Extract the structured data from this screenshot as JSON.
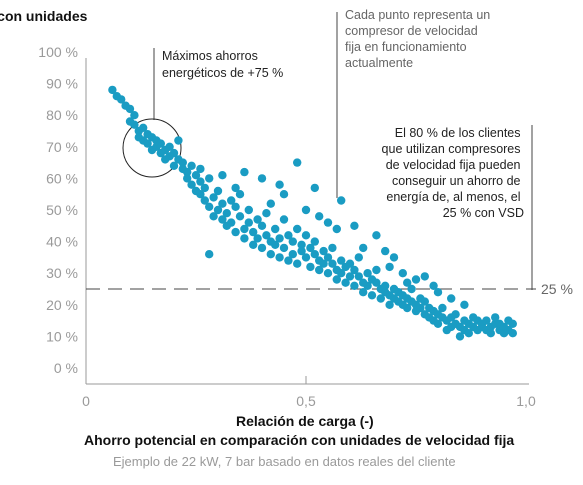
{
  "chart_data": {
    "type": "scatter",
    "xlabel": "Relación de carga (-)",
    "ylabel": "Ahorro potencial en comparación con unidades de velocidad fija",
    "title": "Ahorro potencial en comparación con unidades de velocidad fija",
    "subtitle": "Ejemplo de 22 kW, 7 bar basado en datos reales del cliente",
    "xlim": [
      0,
      1.0
    ],
    "ylim": [
      0,
      100
    ],
    "xticks": [
      "0",
      "0,5",
      "1,0"
    ],
    "yticks": [
      "0 %",
      "10 %",
      "20 %",
      "30 %",
      "40 %",
      "50 %",
      "60 %",
      "70 %",
      "80 %",
      "90 %",
      "100 %"
    ],
    "grid": false,
    "color": "#1a9cc3",
    "reference_line": {
      "y": 25,
      "label": "25 %"
    },
    "annotations": {
      "max_savings": [
        "Máximos ahorros",
        "energéticos de +75 %"
      ],
      "each_point": [
        "Cada punto representa un",
        "compresor de velocidad",
        "fija en funcionamiento",
        "actualmente"
      ],
      "clients": [
        "El 80 % de los clientes",
        "que utilizan compresores",
        "de velocidad fija pueden",
        "conseguir un ahorro de",
        "energía de, al menos, el",
        "25 % con VSD"
      ]
    },
    "points": [
      [
        0.06,
        88
      ],
      [
        0.07,
        86
      ],
      [
        0.08,
        85
      ],
      [
        0.09,
        83
      ],
      [
        0.1,
        82
      ],
      [
        0.1,
        78
      ],
      [
        0.11,
        80
      ],
      [
        0.11,
        77
      ],
      [
        0.12,
        75
      ],
      [
        0.12,
        73
      ],
      [
        0.13,
        76
      ],
      [
        0.13,
        72
      ],
      [
        0.14,
        74
      ],
      [
        0.14,
        71
      ],
      [
        0.15,
        73
      ],
      [
        0.15,
        69
      ],
      [
        0.16,
        72
      ],
      [
        0.16,
        70
      ],
      [
        0.17,
        68
      ],
      [
        0.17,
        71
      ],
      [
        0.18,
        69
      ],
      [
        0.18,
        66
      ],
      [
        0.19,
        70
      ],
      [
        0.19,
        67
      ],
      [
        0.2,
        68
      ],
      [
        0.2,
        64
      ],
      [
        0.21,
        66
      ],
      [
        0.21,
        72
      ],
      [
        0.22,
        63
      ],
      [
        0.22,
        65
      ],
      [
        0.23,
        62
      ],
      [
        0.23,
        60
      ],
      [
        0.24,
        64
      ],
      [
        0.24,
        58
      ],
      [
        0.25,
        61
      ],
      [
        0.25,
        56
      ],
      [
        0.26,
        59
      ],
      [
        0.26,
        55
      ],
      [
        0.27,
        57
      ],
      [
        0.27,
        53
      ],
      [
        0.28,
        60
      ],
      [
        0.28,
        51
      ],
      [
        0.29,
        54
      ],
      [
        0.29,
        48
      ],
      [
        0.3,
        56
      ],
      [
        0.3,
        50
      ],
      [
        0.31,
        52
      ],
      [
        0.31,
        47
      ],
      [
        0.32,
        49
      ],
      [
        0.32,
        45
      ],
      [
        0.33,
        53
      ],
      [
        0.33,
        46
      ],
      [
        0.34,
        51
      ],
      [
        0.34,
        43
      ],
      [
        0.35,
        48
      ],
      [
        0.35,
        55
      ],
      [
        0.36,
        44
      ],
      [
        0.36,
        41
      ],
      [
        0.37,
        50
      ],
      [
        0.37,
        46
      ],
      [
        0.38,
        43
      ],
      [
        0.38,
        39
      ],
      [
        0.39,
        47
      ],
      [
        0.39,
        41
      ],
      [
        0.4,
        45
      ],
      [
        0.4,
        38
      ],
      [
        0.41,
        42
      ],
      [
        0.41,
        49
      ],
      [
        0.42,
        40
      ],
      [
        0.42,
        36
      ],
      [
        0.43,
        44
      ],
      [
        0.43,
        39
      ],
      [
        0.44,
        41
      ],
      [
        0.44,
        35
      ],
      [
        0.45,
        47
      ],
      [
        0.45,
        38
      ],
      [
        0.46,
        42
      ],
      [
        0.46,
        34
      ],
      [
        0.47,
        40
      ],
      [
        0.47,
        36
      ],
      [
        0.48,
        44
      ],
      [
        0.48,
        33
      ],
      [
        0.49,
        39
      ],
      [
        0.49,
        37
      ],
      [
        0.5,
        35
      ],
      [
        0.5,
        42
      ],
      [
        0.51,
        38
      ],
      [
        0.51,
        32
      ],
      [
        0.52,
        36
      ],
      [
        0.52,
        40
      ],
      [
        0.53,
        34
      ],
      [
        0.53,
        31
      ],
      [
        0.54,
        37
      ],
      [
        0.54,
        33
      ],
      [
        0.55,
        35
      ],
      [
        0.55,
        30
      ],
      [
        0.56,
        33
      ],
      [
        0.56,
        38
      ],
      [
        0.57,
        31
      ],
      [
        0.57,
        28
      ],
      [
        0.58,
        34
      ],
      [
        0.58,
        30
      ],
      [
        0.59,
        32
      ],
      [
        0.59,
        27
      ],
      [
        0.6,
        33
      ],
      [
        0.6,
        29
      ],
      [
        0.61,
        31
      ],
      [
        0.61,
        26
      ],
      [
        0.62,
        29
      ],
      [
        0.62,
        35
      ],
      [
        0.63,
        27
      ],
      [
        0.63,
        24
      ],
      [
        0.64,
        30
      ],
      [
        0.64,
        26
      ],
      [
        0.65,
        28
      ],
      [
        0.65,
        23
      ],
      [
        0.66,
        27
      ],
      [
        0.66,
        31
      ],
      [
        0.67,
        25
      ],
      [
        0.67,
        22
      ],
      [
        0.68,
        26
      ],
      [
        0.68,
        24
      ],
      [
        0.69,
        23
      ],
      [
        0.69,
        20
      ],
      [
        0.7,
        25
      ],
      [
        0.7,
        22
      ],
      [
        0.71,
        21
      ],
      [
        0.71,
        24
      ],
      [
        0.72,
        20
      ],
      [
        0.72,
        23
      ],
      [
        0.73,
        22
      ],
      [
        0.73,
        19
      ],
      [
        0.74,
        21
      ],
      [
        0.74,
        25
      ],
      [
        0.75,
        20
      ],
      [
        0.75,
        18
      ],
      [
        0.76,
        22
      ],
      [
        0.76,
        19
      ],
      [
        0.77,
        17
      ],
      [
        0.77,
        21
      ],
      [
        0.78,
        19
      ],
      [
        0.78,
        16
      ],
      [
        0.79,
        18
      ],
      [
        0.79,
        15
      ],
      [
        0.8,
        17
      ],
      [
        0.8,
        14
      ],
      [
        0.81,
        16
      ],
      [
        0.81,
        19
      ],
      [
        0.82,
        15
      ],
      [
        0.82,
        12
      ],
      [
        0.83,
        16
      ],
      [
        0.83,
        13
      ],
      [
        0.84,
        14
      ],
      [
        0.84,
        17
      ],
      [
        0.85,
        13
      ],
      [
        0.85,
        10
      ],
      [
        0.86,
        15
      ],
      [
        0.86,
        12
      ],
      [
        0.87,
        14
      ],
      [
        0.87,
        11
      ],
      [
        0.88,
        13
      ],
      [
        0.88,
        16
      ],
      [
        0.89,
        12
      ],
      [
        0.89,
        15
      ],
      [
        0.9,
        13
      ],
      [
        0.9,
        14
      ],
      [
        0.91,
        12
      ],
      [
        0.91,
        15
      ],
      [
        0.92,
        13
      ],
      [
        0.92,
        11
      ],
      [
        0.93,
        14
      ],
      [
        0.93,
        16
      ],
      [
        0.94,
        12
      ],
      [
        0.94,
        14
      ],
      [
        0.95,
        13
      ],
      [
        0.95,
        11
      ],
      [
        0.96,
        15
      ],
      [
        0.96,
        12
      ],
      [
        0.97,
        14
      ],
      [
        0.97,
        11
      ],
      [
        0.44,
        58
      ],
      [
        0.48,
        65
      ],
      [
        0.36,
        62
      ],
      [
        0.52,
        57
      ],
      [
        0.58,
        53
      ],
      [
        0.61,
        45
      ],
      [
        0.66,
        42
      ],
      [
        0.63,
        38
      ],
      [
        0.57,
        44
      ],
      [
        0.53,
        48
      ],
      [
        0.4,
        60
      ],
      [
        0.45,
        55
      ],
      [
        0.34,
        57
      ],
      [
        0.31,
        61
      ],
      [
        0.26,
        63
      ],
      [
        0.28,
        36
      ],
      [
        0.42,
        52
      ],
      [
        0.5,
        50
      ],
      [
        0.55,
        46
      ],
      [
        0.7,
        35
      ],
      [
        0.69,
        32
      ],
      [
        0.72,
        30
      ],
      [
        0.75,
        28
      ],
      [
        0.79,
        26
      ],
      [
        0.83,
        22
      ],
      [
        0.86,
        20
      ],
      [
        0.8,
        24
      ],
      [
        0.77,
        29
      ],
      [
        0.73,
        27
      ],
      [
        0.68,
        37
      ]
    ]
  }
}
